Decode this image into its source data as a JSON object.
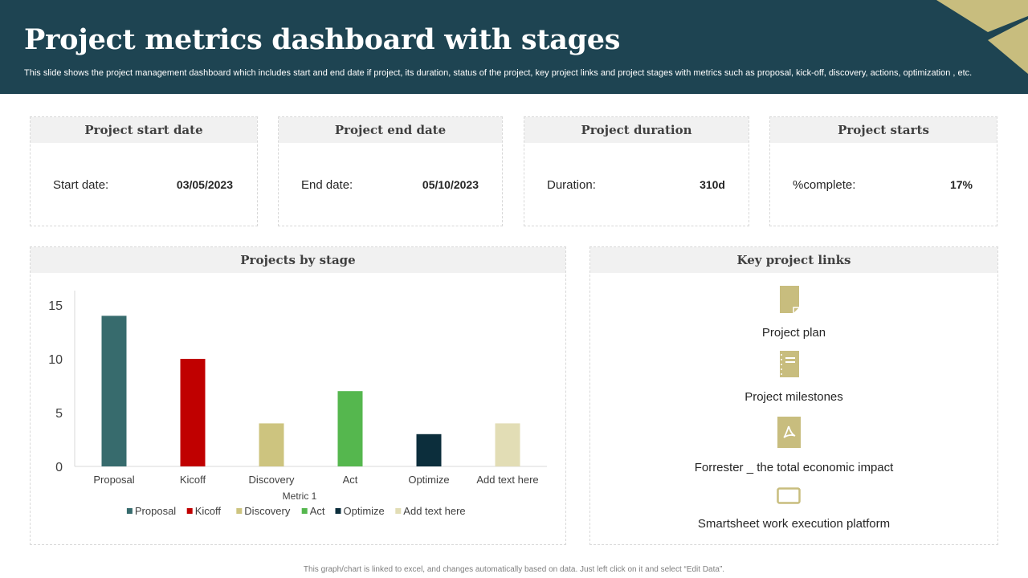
{
  "header": {
    "title": "Project metrics dashboard with stages",
    "subtitle": "This slide shows the project management dashboard which includes start and end date if project, its duration, status of the project, key project links and project stages with metrics such as proposal, kick-off, discovery, actions, optimization , etc."
  },
  "kpis": [
    {
      "title": "Project start date",
      "label": "Start date:",
      "value": "03/05/2023"
    },
    {
      "title": "Project end date",
      "label": "End date:",
      "value": "05/10/2023"
    },
    {
      "title": "Project duration",
      "label": "Duration:",
      "value": "310d"
    },
    {
      "title": "Project starts",
      "label": "%complete:",
      "value": "17%"
    }
  ],
  "stage_panel": {
    "title": "Projects by stage"
  },
  "links_panel": {
    "title": "Key project links",
    "items": [
      {
        "label": "Project plan",
        "icon": "document-icon"
      },
      {
        "label": "Project milestones",
        "icon": "notebook-icon"
      },
      {
        "label": "Forrester _ the total economic impact",
        "icon": "pdf-icon"
      },
      {
        "label": "Smartsheet work execution platform",
        "icon": "monitor-icon"
      }
    ]
  },
  "footer": "This graph/chart is linked to excel, and changes automatically based on data. Just left click on it and select “Edit Data”.",
  "colors": {
    "header_bg": "#1e4452",
    "accent_gold": "#c8bd7e"
  },
  "chart_data": {
    "type": "bar",
    "categories": [
      "Proposal",
      "Kicoff",
      "Discovery",
      "Act",
      "Optimize",
      "Add text here"
    ],
    "series": [
      {
        "name": "Proposal",
        "values": [
          14,
          null,
          null,
          null,
          null,
          null
        ],
        "color": "#376b6d"
      },
      {
        "name": "Kicoff",
        "values": [
          null,
          10,
          null,
          null,
          null,
          null
        ],
        "color": "#c00000"
      },
      {
        "name": "Discovery",
        "values": [
          null,
          null,
          4,
          null,
          null,
          null
        ],
        "color": "#cdc47f"
      },
      {
        "name": "Act",
        "values": [
          null,
          null,
          null,
          7,
          null,
          null
        ],
        "color": "#55b74e"
      },
      {
        "name": "Optimize",
        "values": [
          null,
          null,
          null,
          null,
          3,
          null
        ],
        "color": "#0c2e3c"
      },
      {
        "name": "Add text here",
        "values": [
          null,
          null,
          null,
          null,
          null,
          4
        ],
        "color": "#e2ddb5"
      }
    ],
    "yticks": [
      0,
      5,
      10,
      15
    ],
    "ylim": [
      0,
      15
    ],
    "xlabel": "Metric 1",
    "ylabel": "",
    "legend": "bottom",
    "grid": false
  }
}
